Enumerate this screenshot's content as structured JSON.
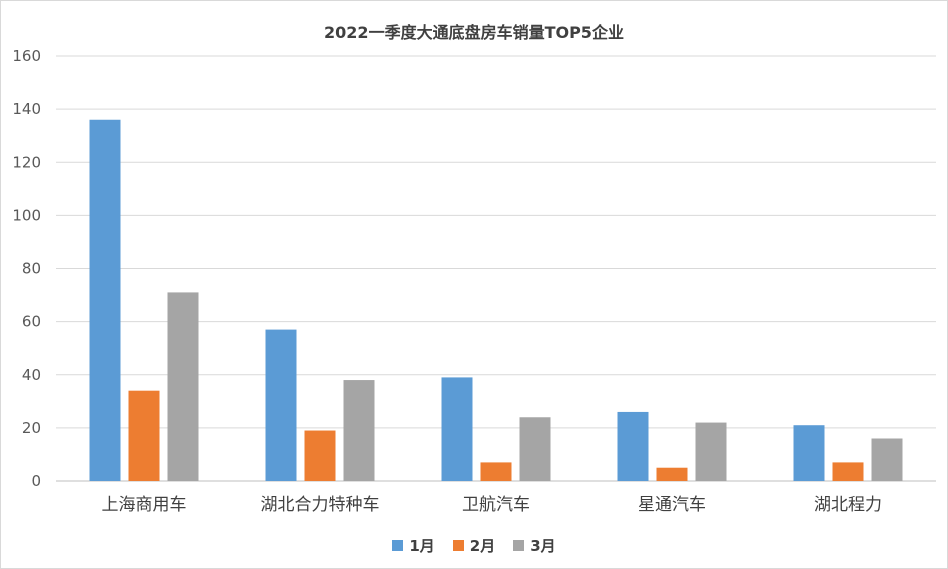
{
  "chart_data": {
    "type": "bar",
    "title": "2022一季度大通底盘房车销量TOP5企业",
    "categories": [
      "上海商用车",
      "湖北合力特种车",
      "卫航汽车",
      "星通汽车",
      "湖北程力"
    ],
    "series": [
      {
        "name": "1月",
        "color": "#5b9bd5",
        "values": [
          136,
          57,
          39,
          26,
          21
        ]
      },
      {
        "name": "2月",
        "color": "#ed7d31",
        "values": [
          34,
          19,
          7,
          5,
          7
        ]
      },
      {
        "name": "3月",
        "color": "#a5a5a5",
        "values": [
          71,
          38,
          24,
          22,
          16
        ]
      }
    ],
    "ylim": [
      0,
      160
    ],
    "yticks": [
      0,
      20,
      40,
      60,
      80,
      100,
      120,
      140,
      160
    ],
    "grid": true,
    "legend_position": "bottom"
  }
}
